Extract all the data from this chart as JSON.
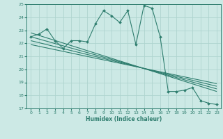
{
  "xlabel": "Humidex (Indice chaleur)",
  "bg_color": "#cce9e5",
  "grid_color": "#afd4cf",
  "line_color": "#2e7d6e",
  "xlim": [
    -0.5,
    23.5
  ],
  "ylim": [
    17,
    25
  ],
  "xticks": [
    0,
    1,
    2,
    3,
    4,
    5,
    6,
    7,
    8,
    9,
    10,
    11,
    12,
    13,
    14,
    15,
    16,
    17,
    18,
    19,
    20,
    21,
    22,
    23
  ],
  "yticks": [
    17,
    18,
    19,
    20,
    21,
    22,
    23,
    24,
    25
  ],
  "main_x": [
    0,
    1,
    2,
    3,
    4,
    5,
    6,
    7,
    8,
    9,
    10,
    11,
    12,
    13,
    14,
    15,
    16,
    17,
    18,
    19,
    20,
    21,
    22,
    23
  ],
  "main_y": [
    22.5,
    22.7,
    23.1,
    22.2,
    21.6,
    22.2,
    22.2,
    22.1,
    23.5,
    24.5,
    24.1,
    23.6,
    24.5,
    21.9,
    24.9,
    24.7,
    22.5,
    18.3,
    18.3,
    18.4,
    18.6,
    17.6,
    17.4,
    17.3
  ],
  "diag_lines": [
    {
      "x": [
        0,
        23
      ],
      "y": [
        22.8,
        18.3
      ]
    },
    {
      "x": [
        0,
        23
      ],
      "y": [
        22.5,
        18.5
      ]
    },
    {
      "x": [
        0,
        23
      ],
      "y": [
        22.2,
        18.7
      ]
    },
    {
      "x": [
        0,
        23
      ],
      "y": [
        21.9,
        18.9
      ]
    }
  ]
}
